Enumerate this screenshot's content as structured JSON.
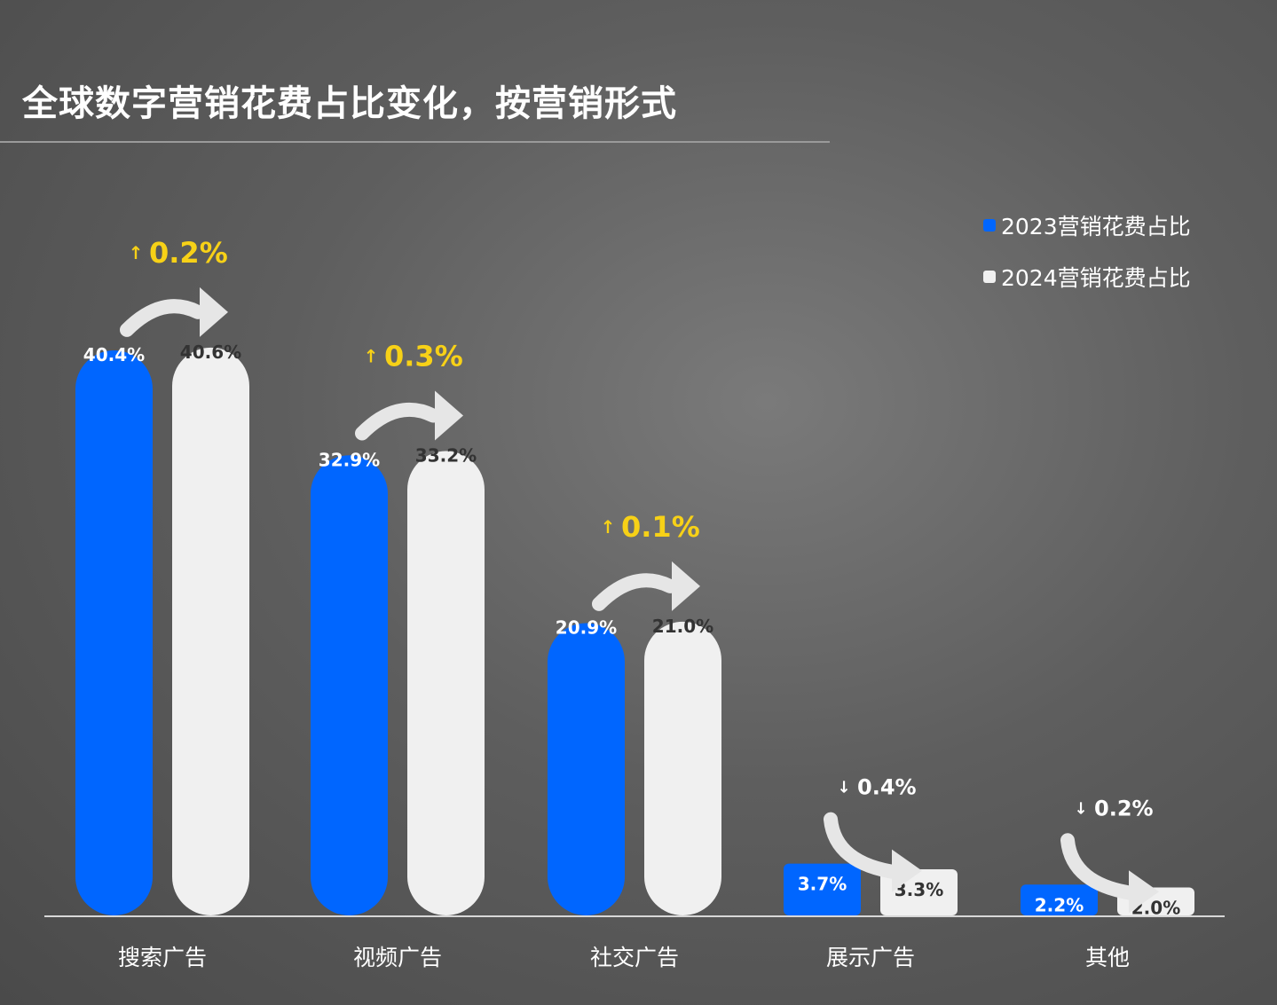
{
  "chart_data": {
    "type": "bar",
    "title": "全球数字营销花费占比变化，按营销形式",
    "categories": [
      "搜索广告",
      "视频广告",
      "社交广告",
      "展示广告",
      "其他"
    ],
    "series": [
      {
        "name": "2023营销花费占比",
        "values": [
          40.4,
          32.9,
          20.9,
          3.7,
          2.2
        ],
        "labels": [
          "40.4%",
          "32.9%",
          "20.9%",
          "3.7%",
          "2.2%"
        ],
        "color": "#0066ff"
      },
      {
        "name": "2024营销花费占比",
        "values": [
          40.6,
          33.2,
          21.0,
          3.3,
          2.0
        ],
        "labels": [
          "40.6%",
          "33.2%",
          "21.0%",
          "3.3%",
          "2.0%"
        ],
        "color": "#f0f0f0"
      }
    ],
    "changes": [
      {
        "direction": "up",
        "label": "0.2%",
        "value": 0.2
      },
      {
        "direction": "up",
        "label": "0.3%",
        "value": 0.3
      },
      {
        "direction": "up",
        "label": "0.1%",
        "value": 0.1
      },
      {
        "direction": "down",
        "label": "0.4%",
        "value": -0.4
      },
      {
        "direction": "down",
        "label": "0.2%",
        "value": -0.2
      }
    ],
    "up_color": "#f7d117",
    "down_color": "#ffffff",
    "ylim": [
      0,
      43
    ],
    "grid": false,
    "legend_position": "top-right",
    "xlabel": "",
    "ylabel": ""
  }
}
